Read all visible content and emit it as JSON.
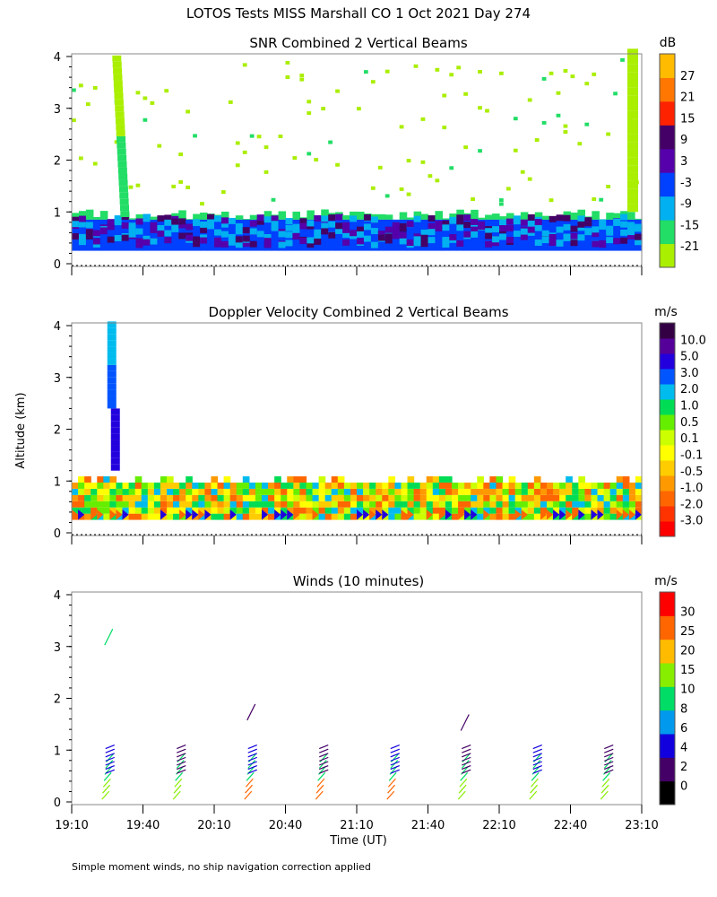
{
  "header": {
    "title": "LOTOS Tests MISS Marshall CO   1 Oct 2021 Day 274"
  },
  "footer": {
    "note": "Simple moment winds, no ship navigation correction applied"
  },
  "colors": {
    "snr": [
      "#aaee00",
      "#22dd66",
      "#00b0f0",
      "#0040ff",
      "#5500aa",
      "#440066",
      "#ff2200",
      "#ff7700",
      "#ffbb00"
    ],
    "doppler": [
      "#ff0000",
      "#ff3300",
      "#ff6600",
      "#ff9900",
      "#ffcc00",
      "#ffff00",
      "#ccff00",
      "#66ee00",
      "#00dd55",
      "#00bbee",
      "#0055ff",
      "#2200dd",
      "#550099",
      "#330044"
    ],
    "winds": [
      "#000000",
      "#440066",
      "#1100dd",
      "#0099ee",
      "#00dd66",
      "#88ee00",
      "#ffbb00",
      "#ff6600",
      "#ff0000"
    ]
  },
  "chart_data": [
    {
      "type": "heatmap",
      "title": "SNR Combined 2 Vertical Beams",
      "ylabel": "Altitude (km)",
      "ylim": [
        0,
        4
      ],
      "yticks": [
        "0",
        "1",
        "2",
        "3",
        "4"
      ],
      "xlim": [
        "19:10",
        "23:10"
      ],
      "unit": "dB",
      "legend_ticks": [
        "-21",
        "-15",
        "-9",
        "-3",
        "3",
        "9",
        "15",
        "21",
        "27"
      ],
      "boundary_layer_top_km": 1.0
    },
    {
      "type": "heatmap",
      "title": "Doppler Velocity Combined 2 Vertical Beams",
      "ylabel": "Altitude (km)",
      "ylim": [
        0,
        4
      ],
      "yticks": [
        "0",
        "1",
        "2",
        "3",
        "4"
      ],
      "xlim": [
        "19:10",
        "23:10"
      ],
      "unit": "m/s",
      "legend_ticks": [
        "-3.0",
        "-2.0",
        "-1.0",
        "-0.5",
        "-0.1",
        "0.1",
        "0.5",
        "1.0",
        "2.0",
        "3.0",
        "5.0",
        "10.0"
      ]
    },
    {
      "type": "scatter",
      "title": "Winds (10 minutes)",
      "xlabel": "Time (UT)",
      "ylabel": "Altitude (km)",
      "ylim": [
        0,
        4
      ],
      "yticks": [
        "0",
        "1",
        "2",
        "3",
        "4"
      ],
      "xticks": [
        "19:10",
        "19:40",
        "20:10",
        "20:40",
        "21:10",
        "21:40",
        "22:10",
        "22:40",
        "23:10"
      ],
      "unit": "m/s",
      "legend_ticks": [
        "0",
        "2",
        "4",
        "6",
        "8",
        "10",
        "15",
        "20",
        "25",
        "30"
      ],
      "profiles_minutes_utc": [
        1165,
        1195,
        1225,
        1255,
        1285,
        1315,
        1345,
        1375
      ]
    }
  ]
}
